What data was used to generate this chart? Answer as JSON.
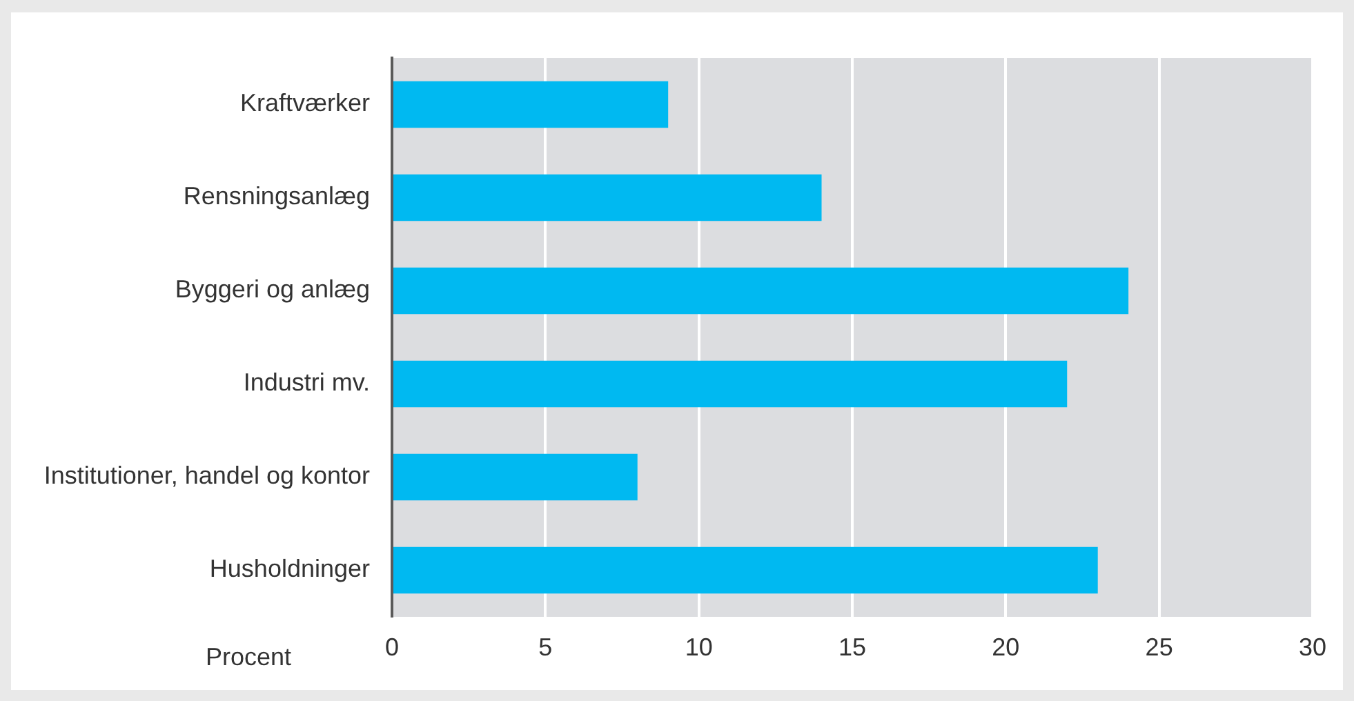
{
  "chart_data": {
    "type": "bar",
    "orientation": "horizontal",
    "xlabel": "Procent",
    "categories": [
      "Kraftværker",
      "Rensningsanlæg",
      "Byggeri og anlæg",
      "Industri mv.",
      "Institutioner, handel og kontor",
      "Husholdninger"
    ],
    "values": [
      9,
      14,
      24,
      22,
      8,
      23
    ],
    "color": "#00b9f1",
    "xlim": [
      0,
      30
    ],
    "xticks": [
      0,
      5,
      10,
      15,
      20,
      25,
      30
    ],
    "grid": "x",
    "legend": false
  }
}
